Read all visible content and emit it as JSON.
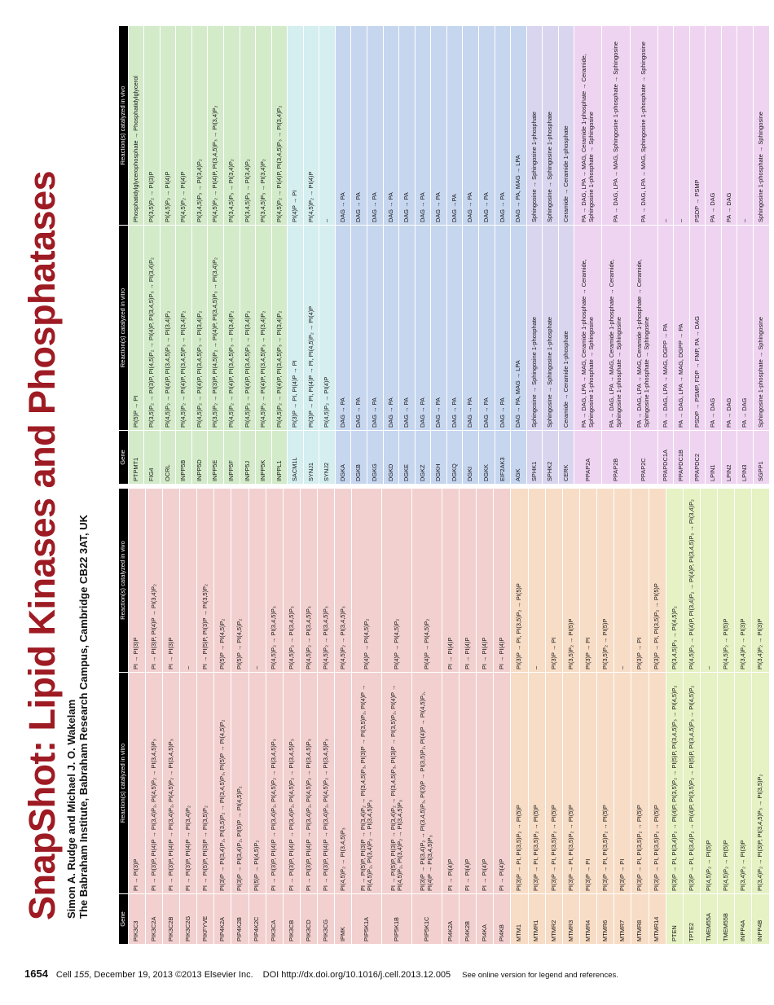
{
  "header": {
    "title": "SnapShot: Lipid Kinases and Phosphatases",
    "authors": "Simon A. Rudge and Michael J. O. Wakelam",
    "affiliation": "The Babraham Institute, Babraham Research Campus, Cambridge CB22 3AT, UK",
    "logo": "Cell"
  },
  "tables": [
    {
      "columns": [
        "Gene",
        "Reaction(s) catalyzed in vitro",
        "Reaction(s) catalyzed in vivo"
      ],
      "groups": [
        {
          "color": "#f2d0d0",
          "rows": [
            [
              "PIK3C3",
              "PI → PI(3)P",
              "PI → PI(3)P"
            ],
            [
              "PIK3C2A",
              "PI → PI(3)P, PI(4)P → PI(3,4)P₂, PI(4,5)P₂ → PI(3,4,5)P₃",
              "PI → PI(3)P, PI(4)P → PI(3,4)P₂"
            ],
            [
              "PIK3C2B",
              "PI → PI(3)P, PI(4)P → PI(3,4)P₂, PI(4,5)P₂ → PI(3,4,5)P₃",
              "PI → PI(3)P"
            ],
            [
              "PIK3C2G",
              "PI → PI(3)P, PI(4)P → PI(3,4)P₂",
              "–"
            ],
            [
              "PIKFYVE",
              "PI → PI(5)P, PI(3)P → PI(3,5)P₂",
              "PI → PI(5)P, PI(3)P → PI(3,5)P₂"
            ],
            [
              "PIP4K2A",
              "PI(3)P → PI(3,4)P₂, PI(3,5)P₂ → PI(3,4,5)P₃, PI(5)P → PI(4,5)P₂",
              "PI(5)P → PI(4,5)P₂"
            ],
            [
              "PIP4K2B",
              "PI(3)P → PI(3,4)P₂, PI(5)P → PI(4,5)P₂",
              "PI(5)P → PI(4,5)P₂"
            ],
            [
              "PIP4K2C",
              "PI(5)P → PI(4,5)P₂",
              "–"
            ],
            [
              "PIK3CA",
              "PI → PI(3)P, PI(4)P → PI(3,4)P₂, PI(4,5)P₂ → PI(3,4,5)P₃",
              "PI(4,5)P₂ → PI(3,4,5)P₃"
            ],
            [
              "PIK3CB",
              "PI → PI(3)P, PI(4)P → PI(3,4)P₂, PI(4,5)P₂ → PI(3,4,5)P₃",
              "PI(4,5)P₂ → PI(3,4,5)P₃"
            ],
            [
              "PIK3CD",
              "PI → PI(3)P, PI(4)P → PI(3,4)P₂, PI(4,5)P₂ → PI(3,4,5)P₃",
              "PI(4,5)P₂ → PI(3,4,5)P₃"
            ],
            [
              "PIK3CG",
              "PI → PI(3)P, PI(4)P → PI(3,4)P₂, PI(4,5)P₂ → PI(3,4,5)P₃",
              "PI(4,5)P₂ → PI(3,4,5)P₃"
            ],
            [
              "IPMK",
              "PI(4,5)P₂ → PI(3,4,5)P₃",
              "PI(4,5)P₂ → PI(3,4,5)P₃"
            ],
            [
              "PIP5K1A",
              "PI → PI(5)P, PI(3)P → PI(3,4)P₂ → PI(3,4,5)P₃, PI(3)P → PI(3,5)P₂, PI(4)P → PI(4,5)P₂, PI(3,4)P₂ → PI(3,4,5)P₃",
              "PI(4)P → PI(4,5)P₂"
            ],
            [
              "PIP5K1B",
              "PI → PI(5)P, PI(3)P → PI(3,4)P₂ → PI(3,4,5)P₃, PI(3)P → PI(3,5)P₂, PI(4)P → PI(4,5)P₂, PI(3,4)P₂ → PI(3,4,5)P₃",
              "PI(4)P → PI(4,5)P₂"
            ],
            [
              "PIP5K1C",
              "PI(3)P → PI(3,4)P₂ → PI(3,4,5)P₃, PI(3)P → PI(3,5)P₂, PI(4)P → PI(4,5)P₂, PI(4)P → PI(3,4,5)P₃",
              "PI(4)P → PI(4,5)P₂"
            ],
            [
              "PI4K2A",
              "PI → PI(4)P",
              "PI → PI(4)P"
            ],
            [
              "PI4K2B",
              "PI → PI(4)P",
              "PI → PI(4)P"
            ],
            [
              "PI4KA",
              "PI → PI(4)P",
              "PI → PI(4)P"
            ],
            [
              "PI4KB",
              "PI → PI(4)P",
              "PI → PI(4)P"
            ]
          ]
        },
        {
          "color": "#f7dcc6",
          "rows": [
            [
              "MTM1",
              "PI(3)P → PI, PI(3,5)P₂ → PI(5)P",
              "PI(3)P → PI, PI(3,5)P₂ → PI(5)P"
            ],
            [
              "MTMR1",
              "PI(3)P → PI, PI(3,5)P₂ → PI(5)P",
              "–"
            ],
            [
              "MTMR2",
              "PI(3)P → PI, PI(3,5)P₂ → PI(5)P",
              "PI(3)P → PI"
            ],
            [
              "MTMR3",
              "PI(3)P → PI, PI(3,5)P₂ → PI(5)P",
              "PI(3,5)P₂ → PI(5)P"
            ],
            [
              "MTMR4",
              "PI(3)P → PI",
              "PI(3)P → PI"
            ],
            [
              "MTMR6",
              "PI(3)P → PI, PI(3,5)P₂ → PI(5)P",
              "PI(3,5)P₂ → PI(5)P"
            ],
            [
              "MTMR7",
              "PI(3)P → PI",
              "–"
            ],
            [
              "MTMR8",
              "PI(3)P → PI, PI(3,5)P₂ → PI(5)P",
              "PI(3)P → PI"
            ],
            [
              "MTMR14",
              "PI(3)P → PI, PI(3,5)P₂ → PI(5)P",
              "PI(3)P → PI, PI(3,5)P₂ → PI(5)P"
            ]
          ]
        },
        {
          "color": "#e6f1c4",
          "rows": [
            [
              "PTEN",
              "PI(3)P → PI, PI(3,4)P₂ → PI(4)P, PI(3,5)P₂ → PI(5)P, PI(3,4,5)P₃ → PI(4,5)P₂",
              "PI(3,4,5)P₃ → PI(4,5)P₂"
            ],
            [
              "TPTE2",
              "PI(3)P → PI, PI(3,4)P₂ → PI(4)P, PI(3,5)P₂ → PI(5)P, PI(3,4,5)P₃ → PI(4,5)P₂",
              "PI(4,5)P₂ → PI(4)P, PI(3,4)P₂ → PI(4)P, PI(3,4,5)P₃ → PI(3,4)P₂"
            ],
            [
              "TMEM55A",
              "PI(4,5)P₂ → PI(5)P",
              "–"
            ],
            [
              "TMEM55B",
              "PI(4,5)P₂ → PI(5)P",
              "PI(4,5)P₂ → PI(5)P"
            ],
            [
              "INPP4A",
              "PI(3,4)P₂ → PI(3)P",
              "PI(3,4)P₂ → PI(3)P"
            ],
            [
              "INPP4B",
              "PI(3,4)P₂ → PI(3)P, PI(3,4,5)P₃ → PI(3,5)P₂",
              "PI(3,4)P₂ → PI(3)P"
            ]
          ]
        }
      ]
    },
    {
      "columns": [
        "Gene",
        "Reaction(s) catalyzed in vitro",
        "Reaction(s) catalyzed in vivo"
      ],
      "groups": [
        {
          "color": "#d3ebc9",
          "rows": [
            [
              "PTPMT1",
              "PI(5)P → PI",
              "Phosphatidylglycerophosphate → Phosphatidylglycerol"
            ],
            [
              "FIG4",
              "PI(3,5)P₂ → PI(3)P, PI(4,5)P₂ → PI(4)P, PI(3,4,5)P₃ → PI(3,4)P₂",
              "PI(3,5)P₂ → PI(3)P"
            ],
            [
              "OCRL",
              "PI(4,5)P₂ → PI(4)P, PI(3,4,5)P₃ → PI(3,4)P₂",
              "PI(4,5)P₂ → PI(4)P"
            ],
            [
              "INPP5B",
              "PI(4,5)P₂ → PI(4)P, PI(3,4,5)P₃ → PI(3,4)P₂",
              "PI(4,5)P₂ → PI(4)P"
            ],
            [
              "INPP5D",
              "PI(4,5)P₂ → PI(4)P, PI(3,4,5)P₃ → PI(3,4)P₂",
              "PI(3,4,5)P₃ → PI(3,4)P₂"
            ],
            [
              "INPP5E",
              "PI(3,5)P₂ → PI(3)P, PI(4,5)P₂ → PI(4)P, PI(3,4,5)P₃ → PI(3,4)P₂",
              "PI(4,5)P₂ → PI(4)P, PI(3,4,5)P₃ → PI(3,4)P₂"
            ],
            [
              "INPP5F",
              "PI(4,5)P₂ → PI(4)P, PI(3,4,5)P₃ → PI(3,4)P₂",
              "PI(3,4,5)P₃ → PI(3,4)P₂"
            ],
            [
              "INPP5J",
              "PI(4,5)P₂ → PI(4)P, PI(3,4,5)P₃ → PI(3,4)P₂",
              "PI(3,4,5)P₃ → PI(3,4)P₂"
            ],
            [
              "INPP5K",
              "PI(4,5)P₂ → PI(4)P, PI(3,4,5)P₃ → PI(3,4)P₂",
              "PI(3,4,5)P₃ → PI(3,4)P₂"
            ],
            [
              "INPPL1",
              "PI(4,5)P₂ → PI(4)P, PI(3,4,5)P₃ → PI(3,4)P₂",
              "PI(4,5)P₂ → PI(4)P, PI(3,4,5)P₃ → PI(3,4)P₂"
            ]
          ]
        },
        {
          "color": "#d5eef0",
          "rows": [
            [
              "SACM1L",
              "PI(3)P → PI, PI(4)P → PI",
              "PI(4)P → PI"
            ],
            [
              "SYNJ1",
              "PI(3)P → PI, PI(4)P → PI, PI(4,5)P₂ → PI(4)P",
              "PI(4,5)P₂ → PI(4)P"
            ],
            [
              "SYNJ2",
              "PI(4,5)P₂ → PI(4)P",
              "–"
            ]
          ]
        },
        {
          "color": "#c6d6ee",
          "rows": [
            [
              "DGKA",
              "DAG → PA",
              "DAG → PA"
            ],
            [
              "DGKB",
              "DAG → PA",
              "DAG → PA"
            ],
            [
              "DGKG",
              "DAG → PA",
              "DAG → PA"
            ],
            [
              "DGKD",
              "DAG → PA",
              "DAG → PA"
            ],
            [
              "DGKE",
              "DAG → PA",
              "DAG → PA"
            ],
            [
              "DGKZ",
              "DAG → PA",
              "DAG → PA"
            ],
            [
              "DGKH",
              "DAG → PA",
              "DAG → PA"
            ],
            [
              "DGKQ",
              "DAG → PA",
              "DAG →PA"
            ],
            [
              "DGKI",
              "DAG → PA",
              "DAG → PA"
            ],
            [
              "DGKK",
              "DAG → PA",
              "DAG → PA"
            ],
            [
              "EIF2AK3",
              "DAG → PA",
              "DAG → PA"
            ],
            [
              "AGK",
              "DAG → PA, MAG → LPA",
              "DAG → PA, MAG → LPA"
            ]
          ]
        },
        {
          "color": "#dad5ef",
          "rows": [
            [
              "SPHK1",
              "Sphingosine → Sphingosine 1-phosphate",
              "Sphingosine → Sphingosine 1-phosphate"
            ],
            [
              "SPHK2",
              "Sphingosine → Sphingosine 1-phosphate",
              "Sphingosine → Sphingosine 1-phosphate"
            ],
            [
              "CERK",
              "Ceramide → Ceramide 1-phosphate",
              "Ceramide → Ceramide 1-phosphate"
            ]
          ]
        },
        {
          "color": "#efd4f1",
          "rows": [
            [
              "PPAP2A",
              "PA → DAG, LPA → MAG, Ceramide 1-phosphate → Ceramide, Sphingosine 1-phosphate → Sphingosine",
              "PA → DAG, LPA → MAG, Ceramide 1-phosphate → Ceramide, Sphingosine 1-phosphate → Sphingosine"
            ],
            [
              "PPAP2B",
              "PA → DAG, LPA → MAG, Ceramide 1-phosphate → Ceramide, Sphingosine 1-phosphate → Sphingosine",
              "PA → DAG, LPA → MAG, Sphingosine 1-phosphate → Sphingosine"
            ],
            [
              "PPAP2C",
              "PA → DAG, LPA → MAG, Ceramide 1-phosphate → Ceramide, Sphingosine 1-phosphate → Sphingosine",
              "PA → DAG, LPA → MAG, Sphingosine 1-phosphate → Sphingosine"
            ],
            [
              "PPAPDC1A",
              "PA → DAG, LPA → MAG, DGPP → PA",
              "–"
            ],
            [
              "PPAPDC1B",
              "PA → DAG, LPA → MAG, DGPP → PA",
              "–"
            ],
            [
              "PPAPDC2",
              "PSDP → PSMP, FDP → FMP, PA → DAG",
              "PSDP → PSMP"
            ],
            [
              "LPIN1",
              "PA → DAG",
              "PA → DAG"
            ],
            [
              "LPIN2",
              "PA → DAG",
              "PA → DAG"
            ],
            [
              "LPIN3",
              "PA → DAG",
              "–"
            ],
            [
              "SGPP1",
              "Sphingosine 1-phosphate → Sphingosine",
              "Sphingosine 1-phosphate → Sphingosine"
            ]
          ]
        }
      ]
    }
  ],
  "footer": {
    "page": "1654",
    "journal": "Cell",
    "volume": "155",
    "date": ", December 19, 2013 ©2013 Elsevier Inc.",
    "doi": "DOI http://dx.doi.org/10.1016/j.cell.2013.12.005",
    "note": "See online version for legend and references."
  }
}
